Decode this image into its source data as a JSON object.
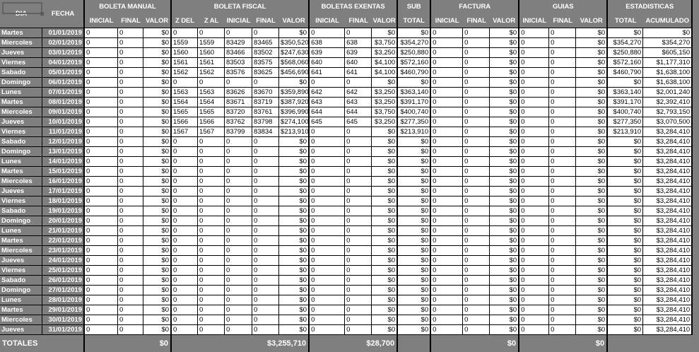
{
  "colors": {
    "background_gray": "#7f7f7f",
    "grid_border": "#000000",
    "cell_bg": "#ffffff",
    "header_text": "#ffffff",
    "cell_text": "#000000"
  },
  "table": {
    "header": {
      "dia": "DIA",
      "fecha": "FECHA",
      "groups": [
        {
          "label": "BOLETA MANUAL",
          "cols": [
            "INICIAL",
            "FINAL",
            "VALOR"
          ]
        },
        {
          "label": "BOLETA FISCAL",
          "cols": [
            "Z DEL",
            "Z AL",
            "INICIAL",
            "FINAL",
            "VALOR"
          ]
        },
        {
          "label": "BOLETAS EXENTAS",
          "cols": [
            "INICIAL",
            "FINAL",
            "VALOR"
          ]
        },
        {
          "label": "SUB",
          "cols": [
            "TOTAL"
          ]
        },
        {
          "label": "FACTURA",
          "cols": [
            "INICIAL",
            "FINAL",
            "VALOR"
          ]
        },
        {
          "label": "GUIAS",
          "cols": [
            "INICIAL",
            "FINAL",
            "VALOR"
          ]
        },
        {
          "label": "ESTADISTICAS",
          "cols": [
            "TOTAL",
            "ACUMULADO"
          ]
        }
      ]
    },
    "rows": [
      [
        "Martes",
        "01/01/2019",
        "0",
        "0",
        "$0",
        "0",
        "0",
        "0",
        "0",
        "$0",
        "0",
        "0",
        "$0",
        "$0",
        "0",
        "0",
        "$0",
        "0",
        "0",
        "$0",
        "$0",
        "$0"
      ],
      [
        "Miercoles",
        "02/01/2019",
        "0",
        "0",
        "$0",
        "1559",
        "1559",
        "83429",
        "83465",
        "$350,520",
        "638",
        "638",
        "$3,750",
        "$354,270",
        "0",
        "0",
        "$0",
        "0",
        "0",
        "$0",
        "$354,270",
        "$354,270"
      ],
      [
        "Jueves",
        "03/01/2019",
        "0",
        "0",
        "$0",
        "1560",
        "1560",
        "83466",
        "83502",
        "$247,630",
        "639",
        "639",
        "$3,250",
        "$250,880",
        "0",
        "0",
        "$0",
        "0",
        "0",
        "$0",
        "$250,880",
        "$605,150"
      ],
      [
        "Viernes",
        "04/01/2019",
        "0",
        "0",
        "$0",
        "1561",
        "1561",
        "83503",
        "83575",
        "$568,060",
        "640",
        "640",
        "$4,100",
        "$572,160",
        "0",
        "0",
        "$0",
        "0",
        "0",
        "$0",
        "$572,160",
        "$1,177,310"
      ],
      [
        "Sabado",
        "05/01/2019",
        "0",
        "0",
        "$0",
        "1562",
        "1562",
        "83576",
        "83625",
        "$456,690",
        "641",
        "641",
        "$4,100",
        "$460,790",
        "0",
        "0",
        "$0",
        "0",
        "0",
        "$0",
        "$460,790",
        "$1,638,100"
      ],
      [
        "Domingo",
        "06/01/2019",
        "0",
        "0",
        "$0",
        "0",
        "0",
        "0",
        "0",
        "$0",
        "0",
        "0",
        "$0",
        "$0",
        "0",
        "0",
        "$0",
        "0",
        "0",
        "$0",
        "$0",
        "$1,638,100"
      ],
      [
        "Lunes",
        "07/01/2019",
        "0",
        "0",
        "$0",
        "1563",
        "1563",
        "83626",
        "83670",
        "$359,890",
        "642",
        "642",
        "$3,250",
        "$363,140",
        "0",
        "0",
        "$0",
        "0",
        "0",
        "$0",
        "$363,140",
        "$2,001,240"
      ],
      [
        "Martes",
        "08/01/2019",
        "0",
        "0",
        "$0",
        "1564",
        "1564",
        "83671",
        "83719",
        "$387,920",
        "643",
        "643",
        "$3,250",
        "$391,170",
        "0",
        "0",
        "$0",
        "0",
        "0",
        "$0",
        "$391,170",
        "$2,392,410"
      ],
      [
        "Miercoles",
        "09/01/2019",
        "0",
        "0",
        "$0",
        "1565",
        "1565",
        "83720",
        "83761",
        "$396,990",
        "644",
        "644",
        "$3,750",
        "$400,740",
        "0",
        "0",
        "$0",
        "0",
        "0",
        "$0",
        "$400,740",
        "$2,793,150"
      ],
      [
        "Jueves",
        "10/01/2019",
        "0",
        "0",
        "$0",
        "1566",
        "1566",
        "83762",
        "83798",
        "$274,100",
        "645",
        "645",
        "$3,250",
        "$277,350",
        "0",
        "0",
        "$0",
        "0",
        "0",
        "$0",
        "$277,350",
        "$3,070,500"
      ],
      [
        "Viernes",
        "11/01/2019",
        "0",
        "0",
        "$0",
        "1567",
        "1567",
        "83799",
        "83834",
        "$213,910",
        "0",
        "0",
        "$0",
        "$213,910",
        "0",
        "0",
        "$0",
        "0",
        "0",
        "$0",
        "$213,910",
        "$3,284,410"
      ],
      [
        "Sabado",
        "12/01/2019",
        "0",
        "0",
        "$0",
        "0",
        "0",
        "0",
        "0",
        "$0",
        "0",
        "0",
        "$0",
        "$0",
        "0",
        "0",
        "$0",
        "0",
        "0",
        "$0",
        "$0",
        "$3,284,410"
      ],
      [
        "Domingo",
        "13/01/2019",
        "0",
        "0",
        "$0",
        "0",
        "0",
        "0",
        "0",
        "$0",
        "0",
        "0",
        "$0",
        "$0",
        "0",
        "0",
        "$0",
        "0",
        "0",
        "$0",
        "$0",
        "$3,284,410"
      ],
      [
        "Lunes",
        "14/01/2019",
        "0",
        "0",
        "$0",
        "0",
        "0",
        "0",
        "0",
        "$0",
        "0",
        "0",
        "$0",
        "$0",
        "0",
        "0",
        "$0",
        "0",
        "0",
        "$0",
        "$0",
        "$3,284,410"
      ],
      [
        "Martes",
        "15/01/2019",
        "0",
        "0",
        "$0",
        "0",
        "0",
        "0",
        "0",
        "$0",
        "0",
        "0",
        "$0",
        "$0",
        "0",
        "0",
        "$0",
        "0",
        "0",
        "$0",
        "$0",
        "$3,284,410"
      ],
      [
        "Miercoles",
        "16/01/2019",
        "0",
        "0",
        "$0",
        "0",
        "0",
        "0",
        "0",
        "$0",
        "0",
        "0",
        "$0",
        "$0",
        "0",
        "0",
        "$0",
        "0",
        "0",
        "$0",
        "$0",
        "$3,284,410"
      ],
      [
        "Jueves",
        "17/01/2019",
        "0",
        "0",
        "$0",
        "0",
        "0",
        "0",
        "0",
        "$0",
        "0",
        "0",
        "$0",
        "$0",
        "0",
        "0",
        "$0",
        "0",
        "0",
        "$0",
        "$0",
        "$3,284,410"
      ],
      [
        "Viernes",
        "18/01/2019",
        "0",
        "0",
        "$0",
        "0",
        "0",
        "0",
        "0",
        "$0",
        "0",
        "0",
        "$0",
        "$0",
        "0",
        "0",
        "$0",
        "0",
        "0",
        "$0",
        "$0",
        "$3,284,410"
      ],
      [
        "Sabado",
        "19/01/2019",
        "0",
        "0",
        "$0",
        "0",
        "0",
        "0",
        "0",
        "$0",
        "0",
        "0",
        "$0",
        "$0",
        "0",
        "0",
        "$0",
        "0",
        "0",
        "$0",
        "$0",
        "$3,284,410"
      ],
      [
        "Domingo",
        "20/01/2019",
        "0",
        "0",
        "$0",
        "0",
        "0",
        "0",
        "0",
        "$0",
        "0",
        "0",
        "$0",
        "$0",
        "0",
        "0",
        "$0",
        "0",
        "0",
        "$0",
        "$0",
        "$3,284,410"
      ],
      [
        "Lunes",
        "21/01/2019",
        "0",
        "0",
        "$0",
        "0",
        "0",
        "0",
        "0",
        "$0",
        "0",
        "0",
        "$0",
        "$0",
        "0",
        "0",
        "$0",
        "0",
        "0",
        "$0",
        "$0",
        "$3,284,410"
      ],
      [
        "Martes",
        "22/01/2019",
        "0",
        "0",
        "$0",
        "0",
        "0",
        "0",
        "0",
        "$0",
        "0",
        "0",
        "$0",
        "$0",
        "0",
        "0",
        "$0",
        "0",
        "0",
        "$0",
        "$0",
        "$3,284,410"
      ],
      [
        "Miercoles",
        "23/01/2019",
        "0",
        "0",
        "$0",
        "0",
        "0",
        "0",
        "0",
        "$0",
        "0",
        "0",
        "$0",
        "$0",
        "0",
        "0",
        "$0",
        "0",
        "0",
        "$0",
        "$0",
        "$3,284,410"
      ],
      [
        "Jueves",
        "24/01/2019",
        "0",
        "0",
        "$0",
        "0",
        "0",
        "0",
        "0",
        "$0",
        "0",
        "0",
        "$0",
        "$0",
        "0",
        "0",
        "$0",
        "0",
        "0",
        "$0",
        "$0",
        "$3,284,410"
      ],
      [
        "Viernes",
        "25/01/2019",
        "0",
        "0",
        "$0",
        "0",
        "0",
        "0",
        "0",
        "$0",
        "0",
        "0",
        "$0",
        "$0",
        "0",
        "0",
        "$0",
        "0",
        "0",
        "$0",
        "$0",
        "$3,284,410"
      ],
      [
        "Sabado",
        "26/01/2019",
        "0",
        "0",
        "$0",
        "0",
        "0",
        "0",
        "0",
        "$0",
        "0",
        "0",
        "$0",
        "$0",
        "0",
        "0",
        "$0",
        "0",
        "0",
        "$0",
        "$0",
        "$3,284,410"
      ],
      [
        "Domingo",
        "27/01/2019",
        "0",
        "0",
        "$0",
        "0",
        "0",
        "0",
        "0",
        "$0",
        "0",
        "0",
        "$0",
        "$0",
        "0",
        "0",
        "$0",
        "0",
        "0",
        "$0",
        "$0",
        "$3,284,410"
      ],
      [
        "Lunes",
        "28/01/2019",
        "0",
        "0",
        "$0",
        "0",
        "0",
        "0",
        "0",
        "$0",
        "0",
        "0",
        "$0",
        "$0",
        "0",
        "0",
        "$0",
        "0",
        "0",
        "$0",
        "$0",
        "$3,284,410"
      ],
      [
        "Martes",
        "29/01/2019",
        "0",
        "0",
        "$0",
        "0",
        "0",
        "0",
        "0",
        "$0",
        "0",
        "0",
        "$0",
        "$0",
        "0",
        "0",
        "$0",
        "0",
        "0",
        "$0",
        "$0",
        "$3,284,410"
      ],
      [
        "Miercoles",
        "30/01/2019",
        "0",
        "0",
        "$0",
        "0",
        "0",
        "0",
        "0",
        "$0",
        "0",
        "0",
        "$0",
        "$0",
        "0",
        "0",
        "$0",
        "0",
        "0",
        "$0",
        "$0",
        "$3,284,410"
      ],
      [
        "Jueves",
        "31/01/2019",
        "0",
        "0",
        "$0",
        "0",
        "0",
        "0",
        "0",
        "$0",
        "0",
        "0",
        "$0",
        "$0",
        "0",
        "0",
        "$0",
        "0",
        "0",
        "$0",
        "$0",
        "$3,284,410"
      ]
    ],
    "totals": {
      "label": "TOTALES",
      "boleta_manual_valor": "$0",
      "boleta_fiscal_valor": "$3,255,710",
      "boletas_exentas_valor": "$28,700",
      "factura_valor": "$0",
      "guias_valor": "$0"
    }
  }
}
